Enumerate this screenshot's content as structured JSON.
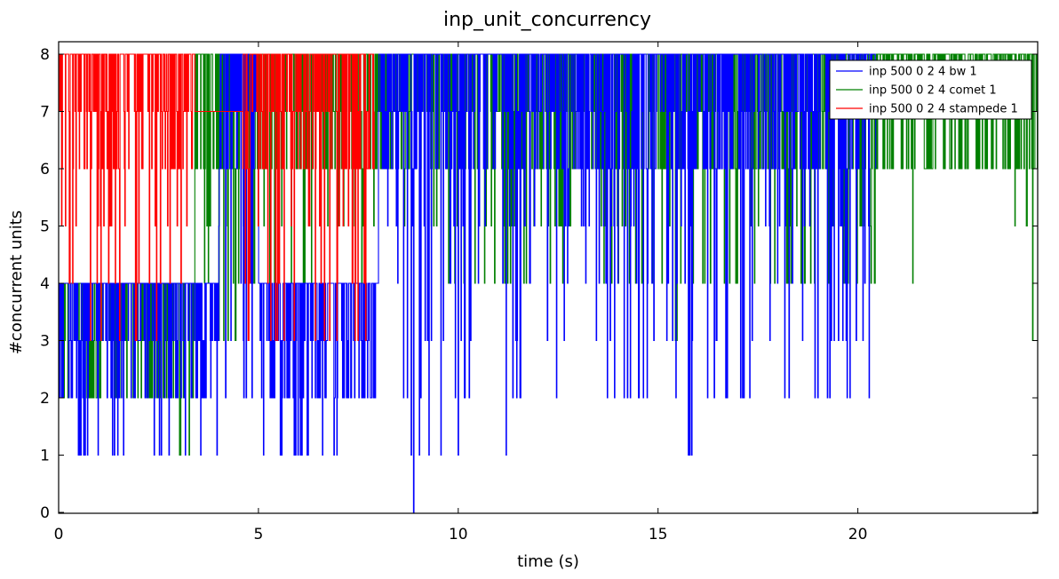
{
  "chart_data": {
    "type": "line",
    "title": "inp_unit_concurrency",
    "xlabel": "time (s)",
    "ylabel": "#concurrent units",
    "xlim": [
      0,
      24.5
    ],
    "ylim": [
      0,
      8
    ],
    "xticks": [
      0,
      5,
      10,
      15,
      20
    ],
    "yticks": [
      0,
      1,
      2,
      3,
      4,
      5,
      6,
      7,
      8
    ],
    "grid": false,
    "legend": "top-right",
    "series": [
      {
        "name": "inp 500 0 2 4 bw 1",
        "color": "#0000ff",
        "range": [
          0,
          20.45
        ],
        "envelope": [
          {
            "t": 0.0,
            "lo": 1,
            "hi": 4
          },
          {
            "t": 1.0,
            "lo": 1,
            "hi": 4
          },
          {
            "t": 2.0,
            "lo": 1,
            "hi": 4
          },
          {
            "t": 3.0,
            "lo": 1,
            "hi": 4
          },
          {
            "t": 4.0,
            "lo": 2,
            "hi": 8
          },
          {
            "t": 4.5,
            "lo": 2,
            "hi": 8
          },
          {
            "t": 5.0,
            "lo": 1,
            "hi": 4
          },
          {
            "t": 6.0,
            "lo": 1,
            "hi": 4
          },
          {
            "t": 7.0,
            "lo": 2,
            "hi": 4
          },
          {
            "t": 8.0,
            "lo": 1,
            "hi": 8
          },
          {
            "t": 8.5,
            "lo": 0,
            "hi": 8
          },
          {
            "t": 9.0,
            "lo": 1,
            "hi": 8
          },
          {
            "t": 10.0,
            "lo": 2,
            "hi": 8
          },
          {
            "t": 11.0,
            "lo": 1,
            "hi": 8
          },
          {
            "t": 12.0,
            "lo": 2,
            "hi": 8
          },
          {
            "t": 13.0,
            "lo": 2,
            "hi": 8
          },
          {
            "t": 14.0,
            "lo": 2,
            "hi": 8
          },
          {
            "t": 15.0,
            "lo": 1,
            "hi": 8
          },
          {
            "t": 16.0,
            "lo": 2,
            "hi": 8
          },
          {
            "t": 17.0,
            "lo": 2,
            "hi": 8
          },
          {
            "t": 18.0,
            "lo": 2,
            "hi": 8
          },
          {
            "t": 19.0,
            "lo": 2,
            "hi": 8
          },
          {
            "t": 20.0,
            "lo": 2,
            "hi": 8
          },
          {
            "t": 20.4,
            "lo": 0,
            "hi": 8
          }
        ]
      },
      {
        "name": "inp 500 0 2 4 comet 1",
        "color": "#008000",
        "range": [
          0,
          24.5
        ],
        "envelope": [
          {
            "t": 0.0,
            "lo": 2,
            "hi": 4
          },
          {
            "t": 2.5,
            "lo": 1,
            "hi": 4
          },
          {
            "t": 3.4,
            "lo": 4,
            "hi": 8
          },
          {
            "t": 4.0,
            "lo": 3,
            "hi": 8
          },
          {
            "t": 4.6,
            "lo": 4,
            "hi": 8
          },
          {
            "t": 7.7,
            "lo": 5,
            "hi": 8
          },
          {
            "t": 9.0,
            "lo": 4,
            "hi": 8
          },
          {
            "t": 10.0,
            "lo": 4,
            "hi": 8
          },
          {
            "t": 11.0,
            "lo": 4,
            "hi": 8
          },
          {
            "t": 13.5,
            "lo": 4,
            "hi": 8
          },
          {
            "t": 14.5,
            "lo": 3,
            "hi": 8
          },
          {
            "t": 16.0,
            "lo": 4,
            "hi": 8
          },
          {
            "t": 17.5,
            "lo": 4,
            "hi": 8
          },
          {
            "t": 18.5,
            "lo": 4,
            "hi": 8
          },
          {
            "t": 19.5,
            "lo": 4,
            "hi": 8
          },
          {
            "t": 20.4,
            "lo": 4,
            "hi": 8
          },
          {
            "t": 21.5,
            "lo": 6,
            "hi": 8
          },
          {
            "t": 23.7,
            "lo": 3,
            "hi": 8
          },
          {
            "t": 24.5,
            "lo": 0,
            "hi": 8
          }
        ]
      },
      {
        "name": "inp 500 0 2 4 stampede 1",
        "color": "#ff0000",
        "range": [
          0,
          7.9
        ],
        "envelope": [
          {
            "t": 0.0,
            "lo": 3,
            "hi": 8
          },
          {
            "t": 1.0,
            "lo": 3,
            "hi": 8
          },
          {
            "t": 2.0,
            "lo": 3,
            "hi": 8
          },
          {
            "t": 3.35,
            "lo": 3,
            "hi": 8
          },
          {
            "t": 3.4,
            "lo": 7,
            "hi": 7
          },
          {
            "t": 4.6,
            "lo": 3,
            "hi": 8
          },
          {
            "t": 6.0,
            "lo": 3,
            "hi": 8
          },
          {
            "t": 7.0,
            "lo": 3,
            "hi": 8
          },
          {
            "t": 7.85,
            "lo": 0,
            "hi": 8
          }
        ]
      }
    ]
  }
}
